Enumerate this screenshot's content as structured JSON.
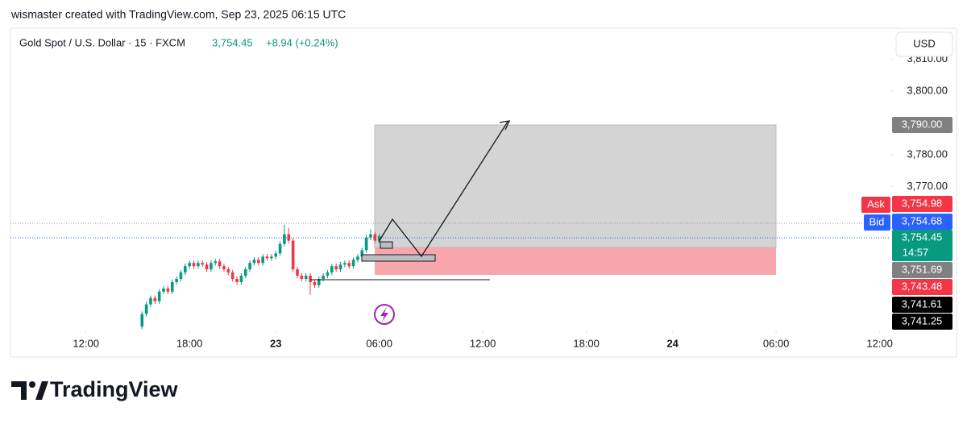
{
  "header": {
    "credit": "wismaster created with TradingView.com, Sep 23, 2025 06:15 UTC"
  },
  "chart_data": {
    "type": "candlestick",
    "title": "Gold Spot / U.S. Dollar · 15 · FXCM",
    "quote": "3,754.45",
    "change": "+8.94 (+0.24%)",
    "currency": "USD",
    "up_color": "#089981",
    "down_color": "#f23645",
    "x": [
      13,
      14,
      15,
      16,
      17,
      18,
      19,
      20,
      21,
      22,
      23,
      24,
      25,
      26,
      27,
      28,
      29,
      30,
      31,
      32,
      33,
      34,
      35,
      36,
      37,
      38,
      39,
      40,
      41,
      42,
      43,
      44,
      45,
      46,
      47,
      48,
      49,
      50,
      51,
      52,
      53,
      54,
      55,
      56,
      57,
      58,
      59,
      60,
      61,
      62,
      63,
      64,
      65,
      66,
      67,
      68
    ],
    "open": [
      3726,
      3730,
      3733,
      3735,
      3734,
      3737,
      3738,
      3737,
      3740,
      3741,
      3743,
      3745,
      3746,
      3745,
      3746,
      3745.5,
      3744,
      3746,
      3746.5,
      3745,
      3744,
      3743,
      3741,
      3740,
      3742,
      3744,
      3746,
      3747,
      3746,
      3748,
      3747.5,
      3748,
      3749,
      3752,
      3755,
      3753,
      3744,
      3742,
      3741,
      3742,
      3740,
      3739,
      3741,
      3742,
      3743,
      3745,
      3744,
      3745.5,
      3746,
      3745,
      3747,
      3748,
      3750,
      3754,
      3755,
      3753
    ],
    "high": [
      3730.8,
      3733.8,
      3735.8,
      3735.8,
      3737.8,
      3738.8,
      3738.8,
      3740.8,
      3741.8,
      3743.8,
      3745.8,
      3746.8,
      3746.8,
      3746.8,
      3746.8,
      3746.3,
      3746.8,
      3747.3,
      3747.3,
      3745.8,
      3744.8,
      3743.8,
      3741.8,
      3742.8,
      3744.8,
      3746.8,
      3747.8,
      3747.8,
      3748.8,
      3748.8,
      3748.8,
      3749.8,
      3752.8,
      3758,
      3757,
      3753.8,
      3744.8,
      3742.8,
      3742.8,
      3742.8,
      3740.8,
      3741.8,
      3742.8,
      3743.8,
      3745.8,
      3745.8,
      3746.3,
      3746.8,
      3746.8,
      3747.8,
      3748.8,
      3750.8,
      3754.8,
      3756.6,
      3755.8,
      3755.2
    ],
    "low": [
      3725.2,
      3729.2,
      3732.2,
      3733.2,
      3733.2,
      3736.2,
      3736.2,
      3736.2,
      3739.2,
      3740.2,
      3742.2,
      3744.2,
      3744.2,
      3744.2,
      3744.7,
      3743.2,
      3743.2,
      3745.2,
      3744.2,
      3743.2,
      3742.2,
      3740.2,
      3739.2,
      3739.2,
      3741.2,
      3743.2,
      3745.2,
      3745.2,
      3745.2,
      3746.7,
      3746.7,
      3747.2,
      3748.2,
      3751.2,
      3752.2,
      3743.2,
      3741.2,
      3740.2,
      3740.2,
      3736,
      3738.2,
      3738.2,
      3740.2,
      3741.2,
      3742.2,
      3743.2,
      3743.2,
      3744.7,
      3744.2,
      3744.2,
      3746.2,
      3747.2,
      3749.2,
      3753.2,
      3752.2,
      3752.2
    ],
    "close": [
      3730,
      3733,
      3735,
      3734,
      3737,
      3738,
      3737,
      3740,
      3741,
      3743,
      3745,
      3746,
      3745,
      3746,
      3745.5,
      3744,
      3746,
      3746.5,
      3745,
      3744,
      3743,
      3741,
      3740,
      3742,
      3744,
      3746,
      3747,
      3746,
      3748,
      3747.5,
      3748,
      3749,
      3752,
      3755,
      3753,
      3744,
      3742,
      3741,
      3742,
      3740,
      3739,
      3741,
      3742,
      3743,
      3745,
      3744,
      3745.5,
      3746,
      3745,
      3747,
      3748,
      3750,
      3754,
      3755,
      3753,
      3754.45
    ],
    "xlim": [
      -17.5,
      186.5
    ],
    "xticks": [
      {
        "value": 0,
        "label": "12:00"
      },
      {
        "value": 24,
        "label": "18:00"
      },
      {
        "value": 44,
        "label": "23"
      },
      {
        "value": 68,
        "label": "06:00"
      },
      {
        "value": 92,
        "label": "12:00"
      },
      {
        "value": 116,
        "label": "18:00"
      },
      {
        "value": 136,
        "label": "24"
      },
      {
        "value": 160,
        "label": "06:00"
      },
      {
        "value": 184,
        "label": "12:00"
      }
    ],
    "ylim": [
      3724.8,
      3819.7
    ],
    "yticks": [
      {
        "value": 3810,
        "label": "3,810.00"
      },
      {
        "value": 3800,
        "label": "3,800.00"
      },
      {
        "value": 3780,
        "label": "3,780.00"
      },
      {
        "value": 3770,
        "label": "3,770.00"
      }
    ],
    "price_tags": {
      "target": "3,790.00",
      "ask_name": "Ask",
      "ask": "3,754.98",
      "bid_name": "Bid",
      "bid": "3,754.68",
      "last": "3,754.45",
      "countdown": "14:57",
      "entry": "3,751.69",
      "stop": "3,743.48",
      "level_a": "3,741.61",
      "level_b": "3,741.25"
    }
  },
  "footer": {
    "brand": "TradingView"
  }
}
